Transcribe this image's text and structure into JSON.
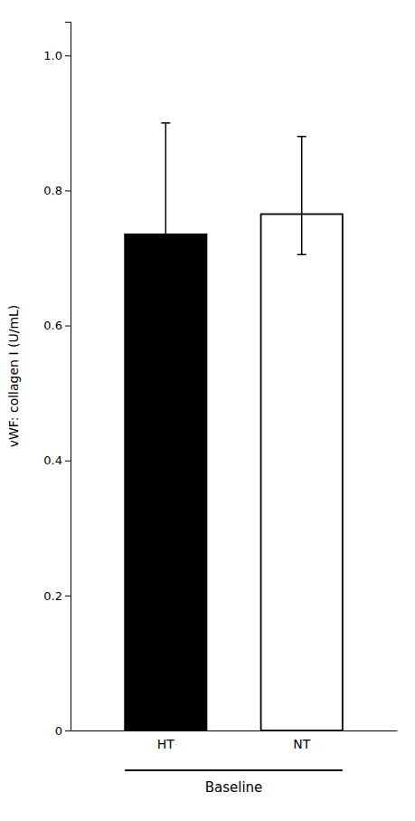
{
  "chart_data": {
    "type": "bar",
    "categories": [
      "HT",
      "NT"
    ],
    "values": [
      0.735,
      0.765
    ],
    "errors_lower": [
      0.07,
      0.06
    ],
    "errors_upper": [
      0.165,
      0.115
    ],
    "colors": [
      "#000000",
      "#ffffff"
    ],
    "ylabel": "vWF: collagen I (U/mL)",
    "xlabel": "Baseline",
    "ylim": [
      0,
      1.05
    ],
    "yticks": [
      0,
      0.2,
      0.4,
      0.6,
      0.8,
      {
        "value": 1.0,
        "label": "1.0"
      }
    ],
    "grid": false
  }
}
